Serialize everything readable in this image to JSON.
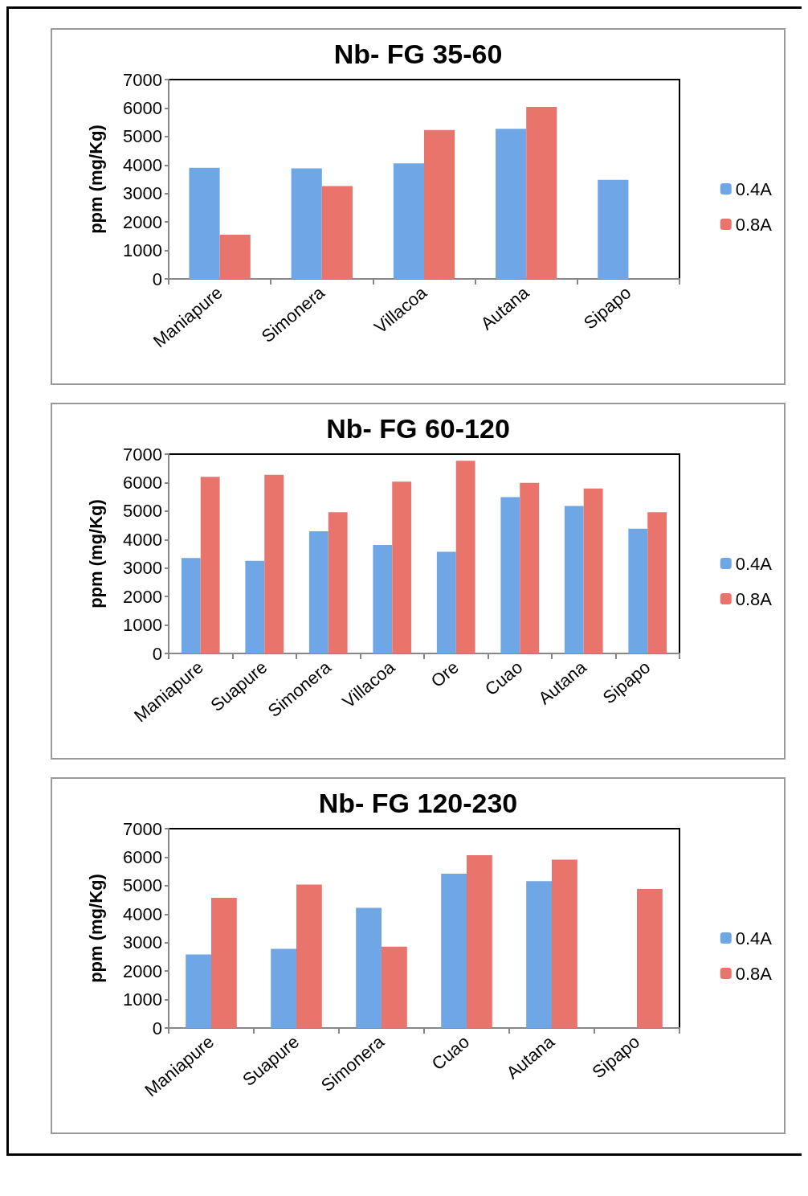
{
  "chart_data": [
    {
      "type": "bar",
      "title": "Nb- FG 35-60",
      "ylabel": "ppm (mg/Kg)",
      "categories": [
        "Maniapure",
        "Simonera",
        "Villacoa",
        "Autana",
        "Sipapo"
      ],
      "series": [
        {
          "name": "0.4A",
          "color": "#6fa6e6",
          "values": [
            3900,
            3880,
            4060,
            5270,
            3480
          ]
        },
        {
          "name": "0.8A",
          "color": "#e9746c",
          "values": [
            1550,
            3260,
            5230,
            6040,
            null
          ]
        }
      ],
      "ylim": [
        0,
        7000
      ],
      "yticks": [
        0,
        1000,
        2000,
        3000,
        4000,
        5000,
        6000,
        7000
      ],
      "grid": false,
      "legend": "right"
    },
    {
      "type": "bar",
      "title": "Nb- FG 60-120",
      "ylabel": "ppm (mg/Kg)",
      "categories": [
        "Maniapure",
        "Suapure",
        "Simonera",
        "Villacoa",
        "Ore",
        "Cuao",
        "Autana",
        "Sipapo"
      ],
      "series": [
        {
          "name": "0.4A",
          "color": "#6fa6e6",
          "values": [
            3350,
            3250,
            4290,
            3810,
            3570,
            5490,
            5180,
            4380
          ]
        },
        {
          "name": "0.8A",
          "color": "#e9746c",
          "values": [
            6200,
            6270,
            4960,
            6030,
            6770,
            5990,
            5790,
            4960
          ]
        }
      ],
      "ylim": [
        0,
        7000
      ],
      "yticks": [
        0,
        1000,
        2000,
        3000,
        4000,
        5000,
        6000,
        7000
      ],
      "grid": false,
      "legend": "right"
    },
    {
      "type": "bar",
      "title": "Nb- FG 120-230",
      "ylabel": "ppm (mg/Kg)",
      "categories": [
        "Maniapure",
        "Suapure",
        "Simonera",
        "Cuao",
        "Autana",
        "Sipapo"
      ],
      "series": [
        {
          "name": "0.4A",
          "color": "#6fa6e6",
          "values": [
            2580,
            2780,
            4220,
            5420,
            5160,
            null
          ]
        },
        {
          "name": "0.8A",
          "color": "#e9746c",
          "values": [
            4570,
            5040,
            2860,
            6070,
            5910,
            4880
          ]
        }
      ],
      "ylim": [
        0,
        7000
      ],
      "yticks": [
        0,
        1000,
        2000,
        3000,
        4000,
        5000,
        6000,
        7000
      ],
      "grid": false,
      "legend": "right"
    }
  ]
}
